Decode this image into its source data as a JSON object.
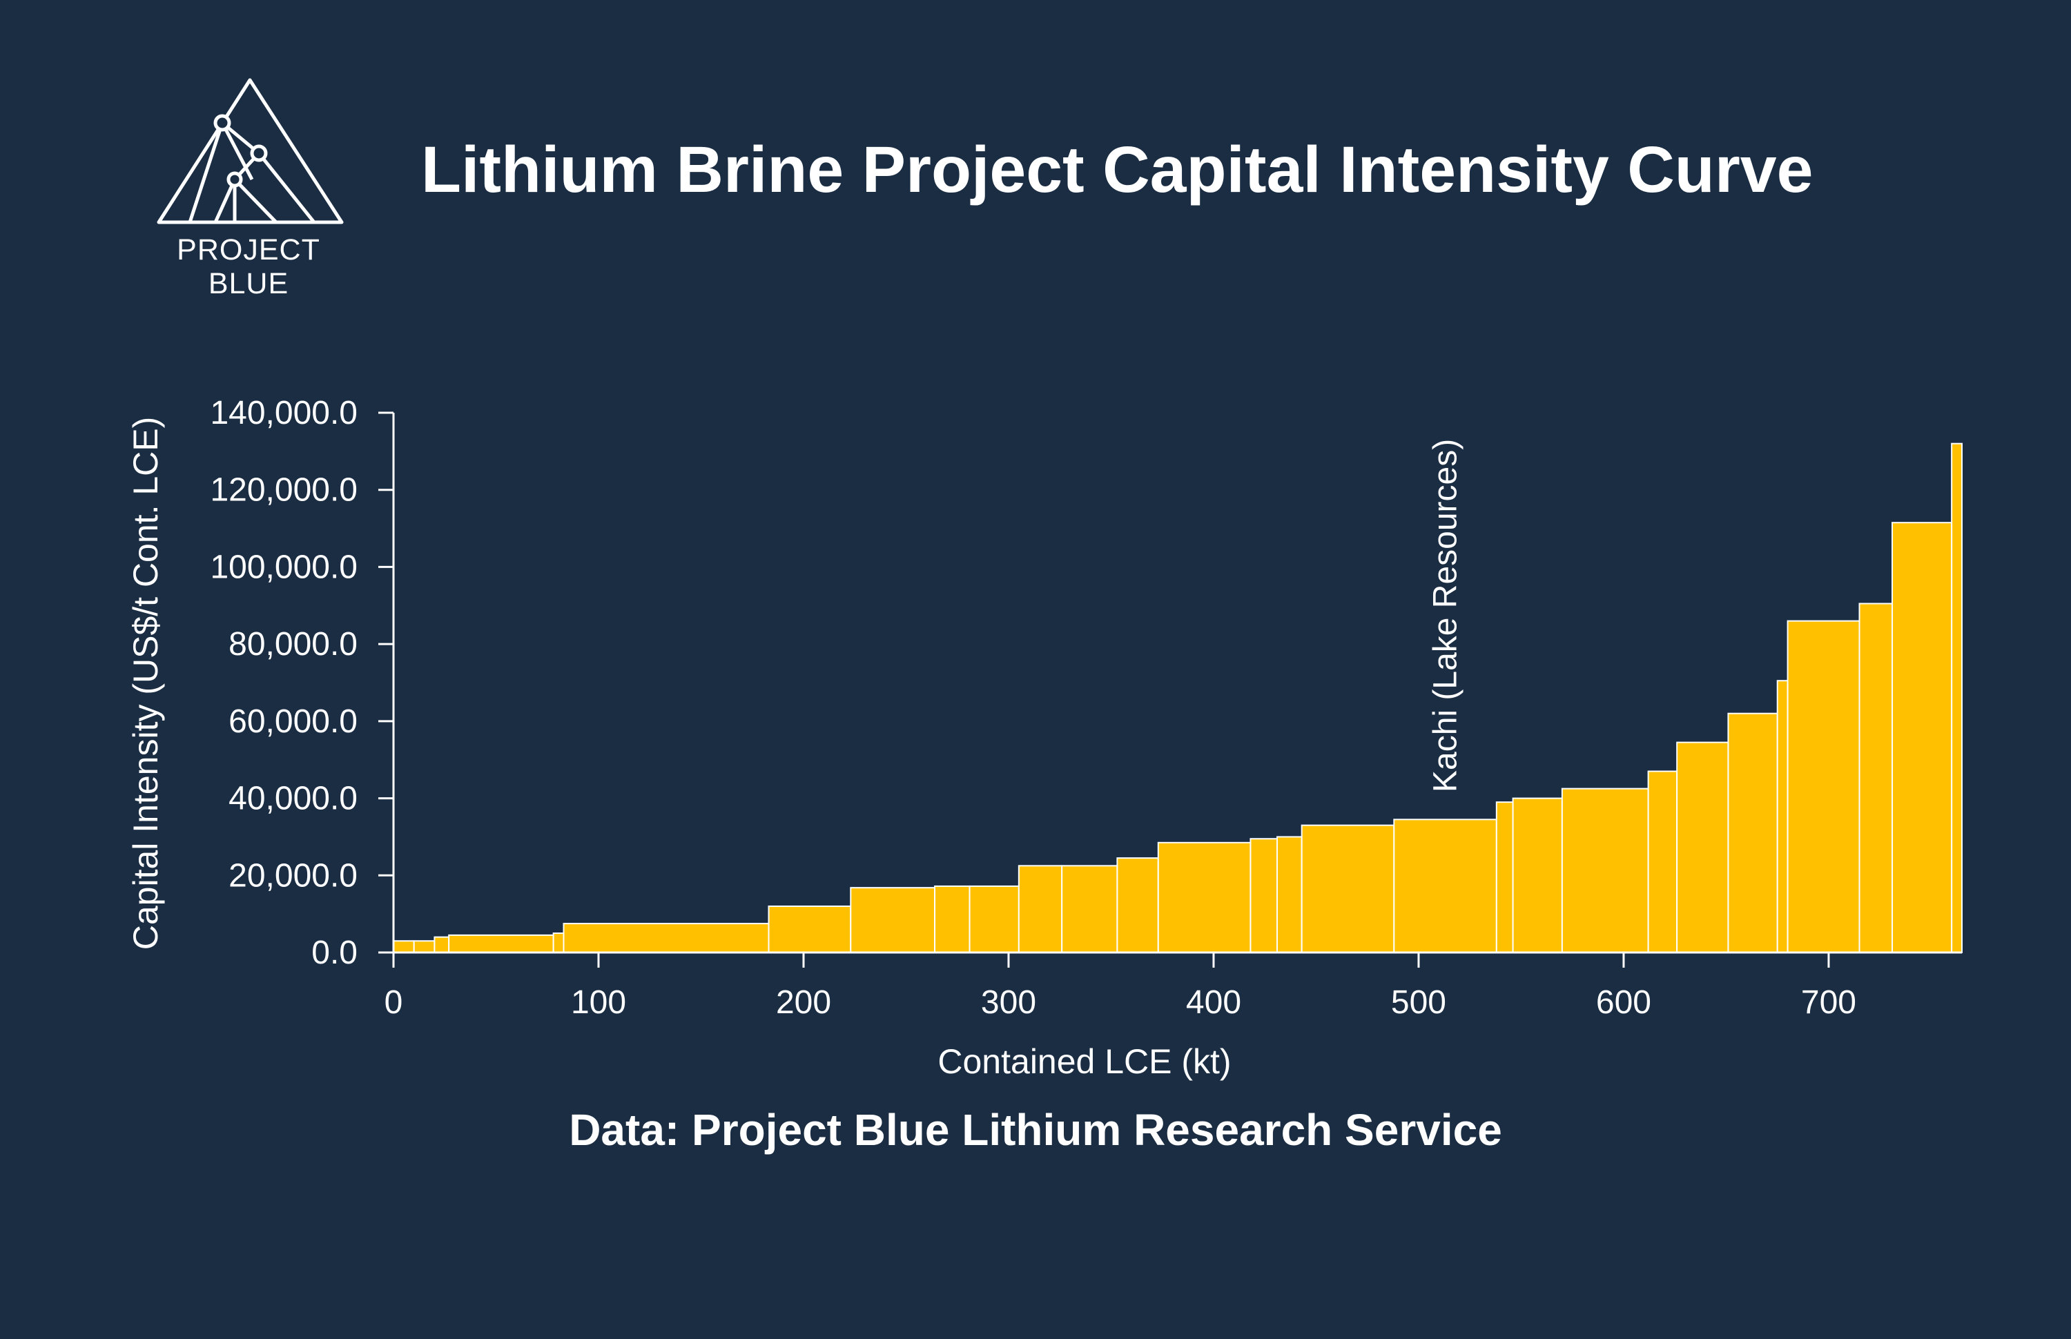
{
  "logo": {
    "text": "PROJECT BLUE"
  },
  "chart_data": {
    "type": "bar",
    "title": "Lithium Brine Project Capital Intensity Curve",
    "xlabel": "Contained LCE (kt)",
    "ylabel": "Capital Intensity (US$/t Cont. LCE)",
    "xlim": [
      0,
      765
    ],
    "ylim": [
      0,
      140000
    ],
    "xticks": [
      {
        "value": 0,
        "label": "0"
      },
      {
        "value": 100,
        "label": "100"
      },
      {
        "value": 200,
        "label": "200"
      },
      {
        "value": 300,
        "label": "300"
      },
      {
        "value": 400,
        "label": "400"
      },
      {
        "value": 500,
        "label": "500"
      },
      {
        "value": 600,
        "label": "600"
      },
      {
        "value": 700,
        "label": "700"
      }
    ],
    "yticks": [
      {
        "value": 0,
        "label": "0.0"
      },
      {
        "value": 20000,
        "label": "20,000.0"
      },
      {
        "value": 40000,
        "label": "40,000.0"
      },
      {
        "value": 60000,
        "label": "60,000.0"
      },
      {
        "value": 80000,
        "label": "80,000.0"
      },
      {
        "value": 100000,
        "label": "100,000.0"
      },
      {
        "value": 120000,
        "label": "120,000.0"
      },
      {
        "value": 140000,
        "label": "140,000.0"
      }
    ],
    "bar_color": "#ffc000",
    "edge_color": "#ffffff",
    "annotation": {
      "text": "Kachi (Lake Resources)",
      "x": 513
    },
    "bars": [
      {
        "x0": 0,
        "x1": 10,
        "value": 3000
      },
      {
        "x0": 10,
        "x1": 20,
        "value": 3000
      },
      {
        "x0": 20,
        "x1": 27,
        "value": 4000
      },
      {
        "x0": 27,
        "x1": 78,
        "value": 4500
      },
      {
        "x0": 78,
        "x1": 83,
        "value": 5000
      },
      {
        "x0": 83,
        "x1": 183,
        "value": 7500
      },
      {
        "x0": 183,
        "x1": 223,
        "value": 12000
      },
      {
        "x0": 223,
        "x1": 264,
        "value": 16800
      },
      {
        "x0": 264,
        "x1": 281,
        "value": 17200
      },
      {
        "x0": 281,
        "x1": 305,
        "value": 17200
      },
      {
        "x0": 305,
        "x1": 326,
        "value": 22500
      },
      {
        "x0": 326,
        "x1": 353,
        "value": 22500
      },
      {
        "x0": 353,
        "x1": 373,
        "value": 24500
      },
      {
        "x0": 373,
        "x1": 418,
        "value": 28500
      },
      {
        "x0": 418,
        "x1": 431,
        "value": 29500
      },
      {
        "x0": 431,
        "x1": 443,
        "value": 30000
      },
      {
        "x0": 443,
        "x1": 488,
        "value": 33000
      },
      {
        "x0": 488,
        "x1": 538,
        "value": 34500
      },
      {
        "x0": 538,
        "x1": 546,
        "value": 39000
      },
      {
        "x0": 546,
        "x1": 570,
        "value": 40000
      },
      {
        "x0": 570,
        "x1": 612,
        "value": 42500
      },
      {
        "x0": 612,
        "x1": 626,
        "value": 47000
      },
      {
        "x0": 626,
        "x1": 651,
        "value": 54500
      },
      {
        "x0": 651,
        "x1": 675,
        "value": 62000
      },
      {
        "x0": 675,
        "x1": 680,
        "value": 70500
      },
      {
        "x0": 680,
        "x1": 715,
        "value": 86000
      },
      {
        "x0": 715,
        "x1": 731,
        "value": 90500
      },
      {
        "x0": 731,
        "x1": 760,
        "value": 111500
      },
      {
        "x0": 760,
        "x1": 765,
        "value": 132000
      }
    ]
  },
  "source": "Data: Project Blue Lithium Research Service"
}
